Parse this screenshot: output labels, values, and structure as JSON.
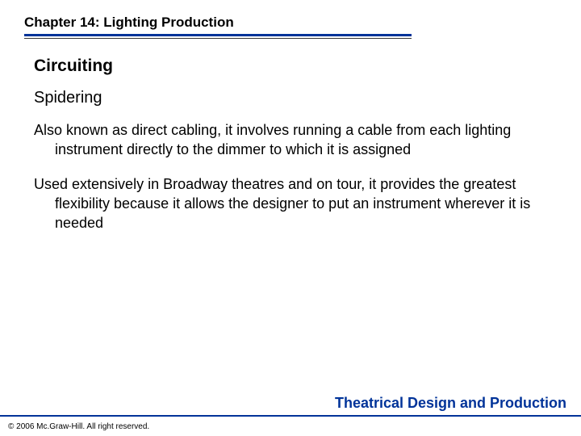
{
  "header": {
    "chapter_title": "Chapter 14:  Lighting Production",
    "chapter_title_fontsize": 17,
    "blue_line_color": "#003399",
    "thin_line_color": "#333333"
  },
  "content": {
    "section_title": "Circuiting",
    "section_title_fontsize": 21,
    "subsection_title": "Spidering",
    "subsection_title_fontsize": 20,
    "paragraphs": [
      "Also known as direct cabling, it involves running a cable from each lighting instrument directly to the dimmer to which it is assigned",
      "Used extensively in Broadway theatres and on tour, it provides the greatest flexibility because it allows the designer to put an instrument wherever it is needed"
    ],
    "body_fontsize": 18
  },
  "footer": {
    "book_title": "Theatrical Design and Production",
    "book_title_fontsize": 18,
    "book_title_color": "#003399",
    "copyright": "© 2006 Mc.Graw-Hill. All right reserved.",
    "copyright_fontsize": 10,
    "line_color": "#003399"
  },
  "colors": {
    "background": "#ffffff",
    "text": "#000000",
    "accent": "#003399"
  }
}
